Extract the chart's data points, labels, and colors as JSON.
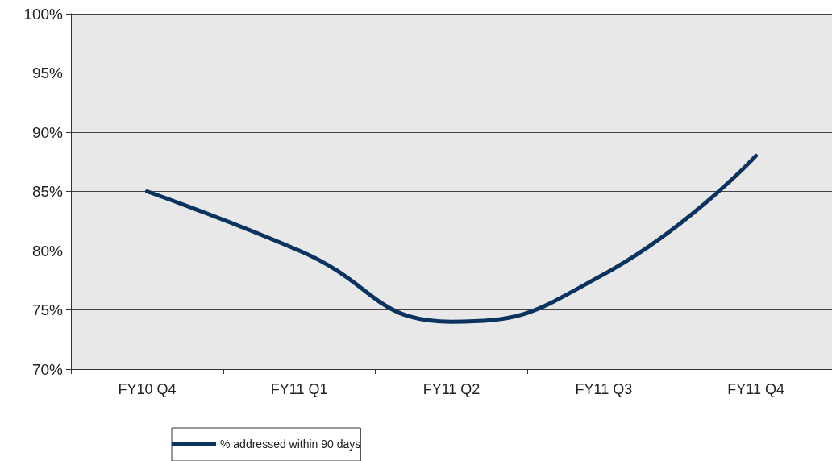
{
  "chart_data": {
    "type": "line",
    "categories": [
      "FY10 Q4",
      "FY11 Q1",
      "FY11 Q2",
      "FY11 Q3",
      "FY11 Q4"
    ],
    "series": [
      {
        "name": "% addressed within 90 days",
        "color": "#0b3360",
        "values": [
          85,
          80,
          74,
          78,
          88
        ]
      }
    ],
    "ylim": [
      70,
      100
    ],
    "yticks": [
      {
        "value": 70,
        "label": "70%"
      },
      {
        "value": 75,
        "label": "75%"
      },
      {
        "value": 80,
        "label": "80%"
      },
      {
        "value": 85,
        "label": "85%"
      },
      {
        "value": 90,
        "label": "90%"
      },
      {
        "value": 95,
        "label": "95%"
      },
      {
        "value": 100,
        "label": "100%"
      }
    ],
    "grid": "y",
    "legend": "bottom",
    "marker": "none",
    "line_style": "solid"
  }
}
